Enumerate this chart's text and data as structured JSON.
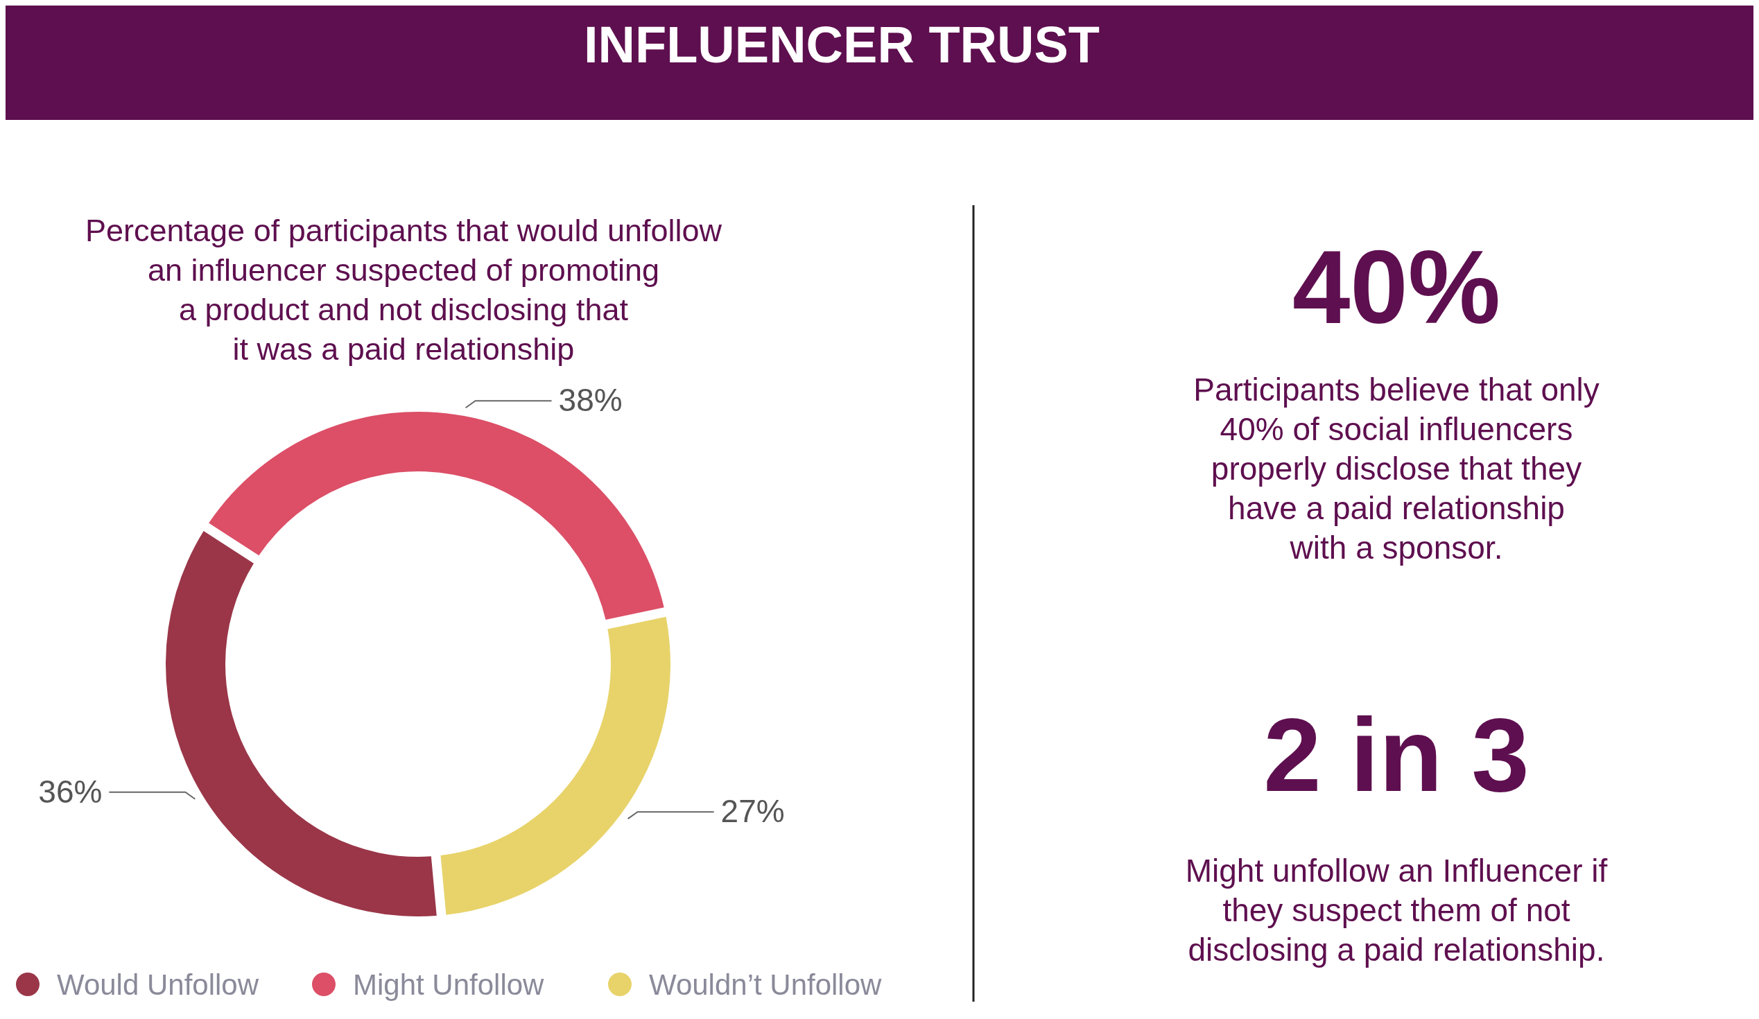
{
  "chart_data": [
    {
      "type": "donut",
      "title": "INFLUENCER TRUST",
      "subtitle": "Percentage of participants that would unfollow\nan influencer suspected of promoting\na product and not disclosing that\nit was a paid relationship",
      "categories": [
        "Would Unfollow",
        "Might Unfollow",
        "Wouldn’t Unfollow"
      ],
      "values": [
        36,
        38,
        27
      ],
      "colors": [
        "#9a3648",
        "#dc4f67",
        "#e8d36a"
      ],
      "value_labels": [
        "36%",
        "38%",
        "27%"
      ],
      "legend": "bottom"
    },
    {
      "type": "other",
      "annotations": [
        "40%",
        "Participants believe that only\n40% of social influencers\nproperly disclose that they\nhave a paid relationship\nwith a sponsor.",
        "2 in 3",
        "Might unfollow an Influencer if\nthey suspect them of not\ndisclosing a paid relationship."
      ]
    }
  ]
}
